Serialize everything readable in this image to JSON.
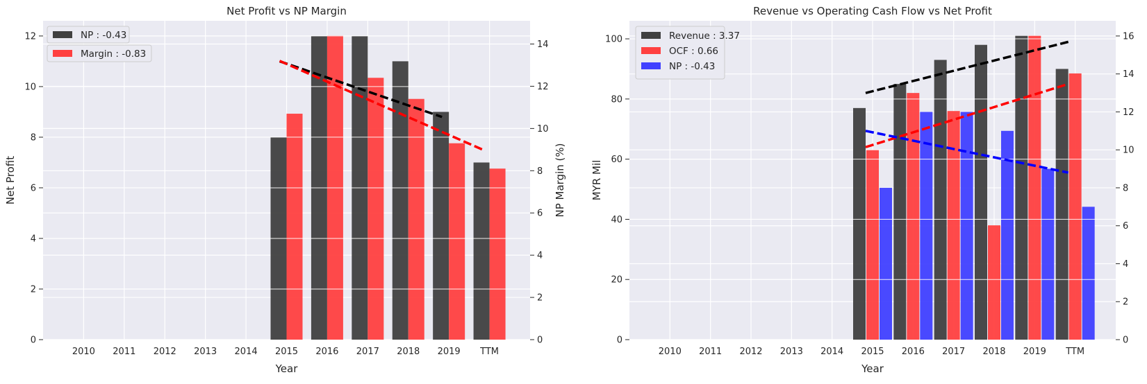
{
  "chart_data": [
    {
      "type": "bar",
      "title": "Net Profit vs NP Margin",
      "xlabel": "Year",
      "ylabel": "Net Profit",
      "y2label": "NP Margin (%)",
      "categories": [
        "2010",
        "2011",
        "2012",
        "2013",
        "2014",
        "2015",
        "2016",
        "2017",
        "2018",
        "2019",
        "TTM"
      ],
      "ylim": [
        0,
        12.6
      ],
      "y2lim": [
        0,
        15.1
      ],
      "yticks": [
        "0",
        "2",
        "4",
        "6",
        "8",
        "10",
        "12"
      ],
      "y2ticks": [
        "0",
        "2",
        "4",
        "6",
        "8",
        "10",
        "12",
        "14"
      ],
      "grid": true,
      "legend_position": "top-left",
      "series": [
        {
          "name": "NP : -0.43",
          "axis": "left",
          "color": "#404040",
          "values": [
            null,
            null,
            null,
            null,
            null,
            8,
            12,
            12,
            11,
            9,
            7
          ]
        },
        {
          "name": "Margin : -0.83",
          "axis": "right",
          "color": "#ff4040",
          "values": [
            null,
            null,
            null,
            null,
            null,
            10.7,
            14.4,
            12.4,
            11.4,
            9.3,
            8.1
          ]
        }
      ],
      "trendlines": [
        {
          "series": "NP : -0.43",
          "color": "#000000",
          "axis": "left",
          "x": [
            "2015",
            "2019"
          ],
          "y": [
            11.0,
            8.8
          ]
        },
        {
          "series": "Margin : -0.83",
          "color": "#ff0000",
          "axis": "right",
          "x": [
            "2015",
            "TTM"
          ],
          "y": [
            13.2,
            9.0
          ]
        }
      ]
    },
    {
      "type": "bar",
      "title": "Revenue vs Operating Cash Flow vs Net Profit",
      "xlabel": "Year",
      "ylabel": "MYR Mil",
      "categories": [
        "2010",
        "2011",
        "2012",
        "2013",
        "2014",
        "2015",
        "2016",
        "2017",
        "2018",
        "2019",
        "TTM"
      ],
      "ylim": [
        0,
        106
      ],
      "y2lim": [
        0,
        16.8
      ],
      "yticks": [
        "0",
        "20",
        "40",
        "60",
        "80",
        "100"
      ],
      "y2ticks": [
        "0",
        "2",
        "4",
        "6",
        "8",
        "10",
        "12",
        "14",
        "16"
      ],
      "grid": true,
      "legend_position": "top-left",
      "series": [
        {
          "name": "Revenue : 3.37",
          "axis": "left",
          "color": "#404040",
          "values": [
            null,
            null,
            null,
            null,
            null,
            77,
            85,
            93,
            98,
            101,
            90
          ]
        },
        {
          "name": "OCF : 0.66",
          "axis": "left",
          "color": "#ff4040",
          "values": [
            null,
            null,
            null,
            null,
            null,
            63,
            82,
            76,
            38,
            101,
            88.5
          ]
        },
        {
          "name": "NP : -0.43",
          "axis": "right",
          "color": "#4040ff",
          "values": [
            null,
            null,
            null,
            null,
            null,
            8,
            12,
            12,
            11,
            9,
            7
          ]
        }
      ],
      "trendlines": [
        {
          "series": "Revenue : 3.37",
          "color": "#000000",
          "axis": "left",
          "x": [
            "2015",
            "TTM"
          ],
          "y": [
            82,
            99
          ]
        },
        {
          "series": "OCF : 0.66",
          "color": "#ff0000",
          "axis": "left",
          "x": [
            "2015",
            "TTM"
          ],
          "y": [
            64,
            85
          ]
        },
        {
          "series": "NP : -0.43",
          "color": "#0000ff",
          "axis": "right",
          "x": [
            "2015",
            "TTM"
          ],
          "y": [
            11,
            8.8
          ]
        }
      ]
    }
  ]
}
